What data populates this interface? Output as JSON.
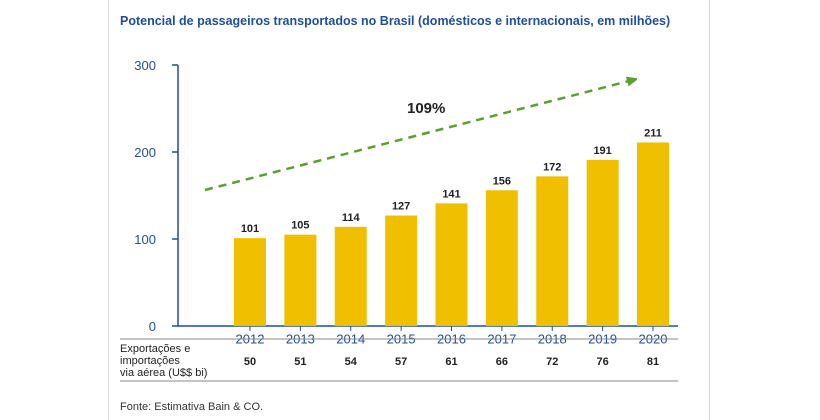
{
  "title": "Potencial de passageiros transportados no Brasil (domésticos e internacionais, em milhões)",
  "chart_data": {
    "type": "bar",
    "title": "Potencial de passageiros transportados no Brasil (domésticos e internacionais, em milhões)",
    "categories": [
      "2012",
      "2013",
      "2014",
      "2015",
      "2016",
      "2017",
      "2018",
      "2019",
      "2020"
    ],
    "values": [
      101,
      105,
      114,
      127,
      141,
      156,
      172,
      191,
      211
    ],
    "ylim": [
      0,
      300
    ],
    "yticks": [
      "0",
      "100",
      "200",
      "300"
    ],
    "bar_color": "#f0c000",
    "axis_color": "#1f4e9c",
    "grid": false,
    "annotation": "109%",
    "trend_arrow_color": "#5aa02c"
  },
  "table": {
    "row_label_lines": [
      "Exportações e",
      "importações",
      "via aérea (U$$ bi)"
    ],
    "values": [
      "50",
      "51",
      "54",
      "57",
      "61",
      "66",
      "72",
      "76",
      "81"
    ]
  },
  "source": "Fonte: Estimativa Bain & CO."
}
